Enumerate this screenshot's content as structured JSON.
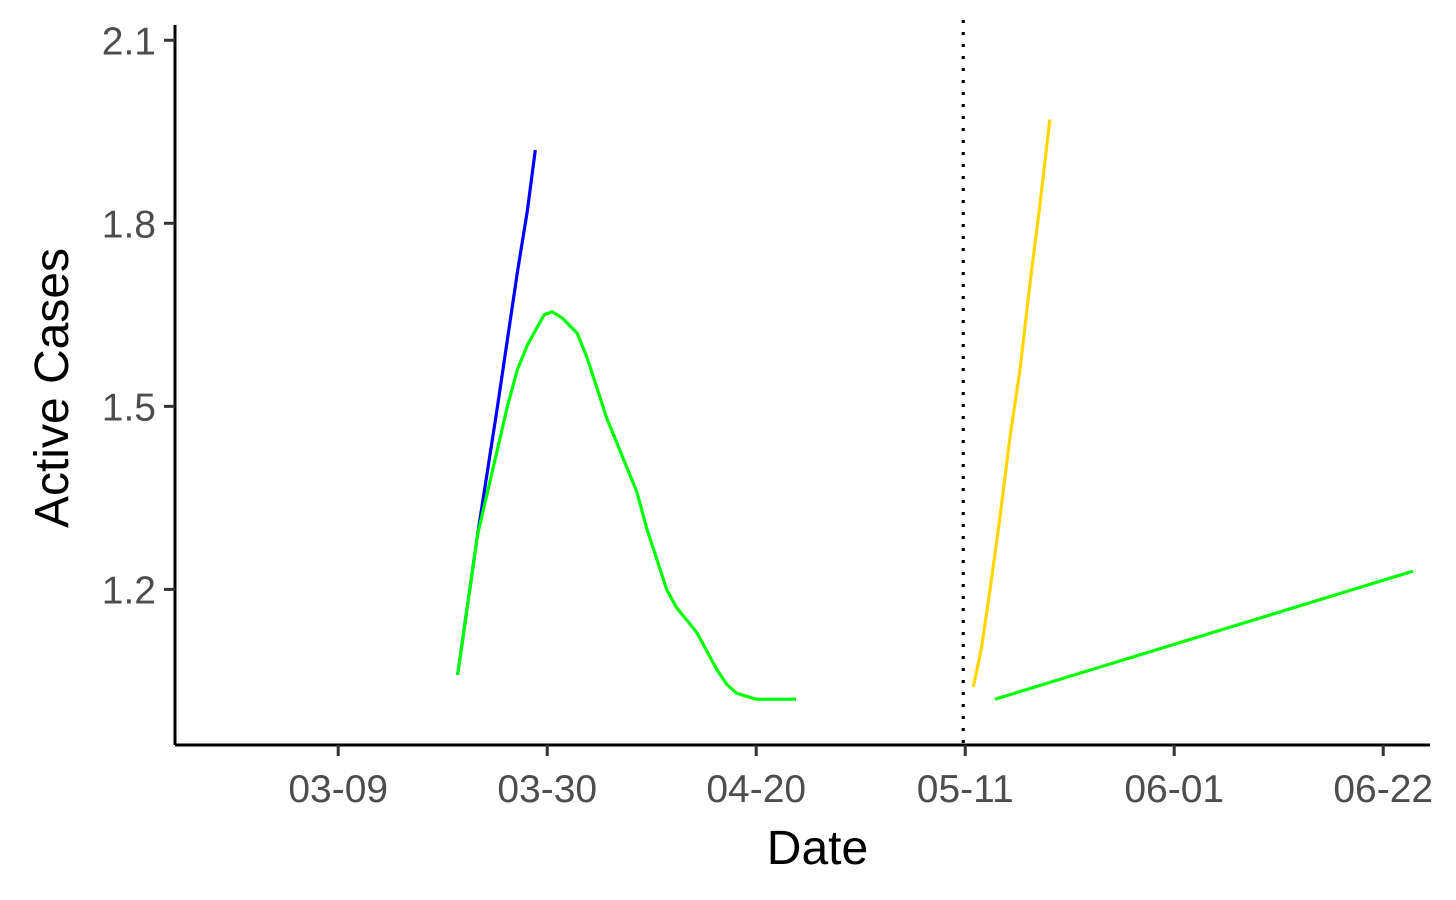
{
  "chart_data": {
    "type": "line",
    "title": "",
    "xlabel": "Date",
    "ylabel": "Active Cases",
    "x_ticks": [
      {
        "day": 8,
        "label": "03-09"
      },
      {
        "day": 29,
        "label": "03-30"
      },
      {
        "day": 50,
        "label": "04-20"
      },
      {
        "day": 71,
        "label": "05-11"
      },
      {
        "day": 92,
        "label": "06-01"
      },
      {
        "day": 113,
        "label": "06-22"
      }
    ],
    "y_ticks": [
      {
        "value": 1.2,
        "label": "1.2"
      },
      {
        "value": 1.5,
        "label": "1.5"
      },
      {
        "value": 1.8,
        "label": "1.8"
      },
      {
        "value": 2.1,
        "label": "2.1"
      }
    ],
    "x_unit": "days since 03-01",
    "xlim": [
      -8.4,
      117.7
    ],
    "ylim": [
      0.945,
      2.125
    ],
    "vline": {
      "day": 70.8,
      "style": "dotted",
      "color": "#000000"
    },
    "series": [
      {
        "name": "series-blue",
        "color": "#0000FF",
        "x": [
          20.0,
          22.0,
          24.0,
          26.0,
          27.0,
          27.8
        ],
        "y": [
          1.06,
          1.29,
          1.5,
          1.72,
          1.82,
          1.92
        ]
      },
      {
        "name": "series-green-early",
        "color": "#00FF00",
        "x": [
          20.0,
          22.0,
          24.0,
          25.0,
          26.0,
          27.0,
          28.0,
          28.7,
          29.5,
          30.5,
          32.0,
          33.0,
          34.0,
          35.0,
          36.0,
          37.0,
          38.0,
          39.0,
          40.0,
          41.0,
          42.0,
          43.0,
          44.0,
          45.0,
          46.0,
          47.0,
          48.0,
          49.0,
          50.0,
          51.0,
          52.0,
          53.0,
          54.0
        ],
        "y": [
          1.06,
          1.29,
          1.43,
          1.5,
          1.56,
          1.6,
          1.63,
          1.65,
          1.655,
          1.645,
          1.62,
          1.58,
          1.53,
          1.48,
          1.44,
          1.4,
          1.36,
          1.3,
          1.25,
          1.2,
          1.17,
          1.15,
          1.13,
          1.1,
          1.07,
          1.045,
          1.03,
          1.025,
          1.02,
          1.02,
          1.02,
          1.02,
          1.02
        ]
      },
      {
        "name": "series-yellow",
        "color": "#FFD700",
        "x": [
          71.8,
          72.6,
          73.5,
          74.5,
          75.5,
          76.5,
          77.5,
          78.5,
          79.5
        ],
        "y": [
          1.04,
          1.1,
          1.2,
          1.32,
          1.45,
          1.56,
          1.7,
          1.83,
          1.97
        ]
      },
      {
        "name": "series-green-late",
        "color": "#00FF00",
        "x": [
          74.0,
          80.0,
          86.0,
          92.0,
          98.0,
          104.0,
          110.0,
          116.0
        ],
        "y": [
          1.02,
          1.05,
          1.08,
          1.11,
          1.14,
          1.17,
          1.2,
          1.23
        ]
      }
    ]
  }
}
